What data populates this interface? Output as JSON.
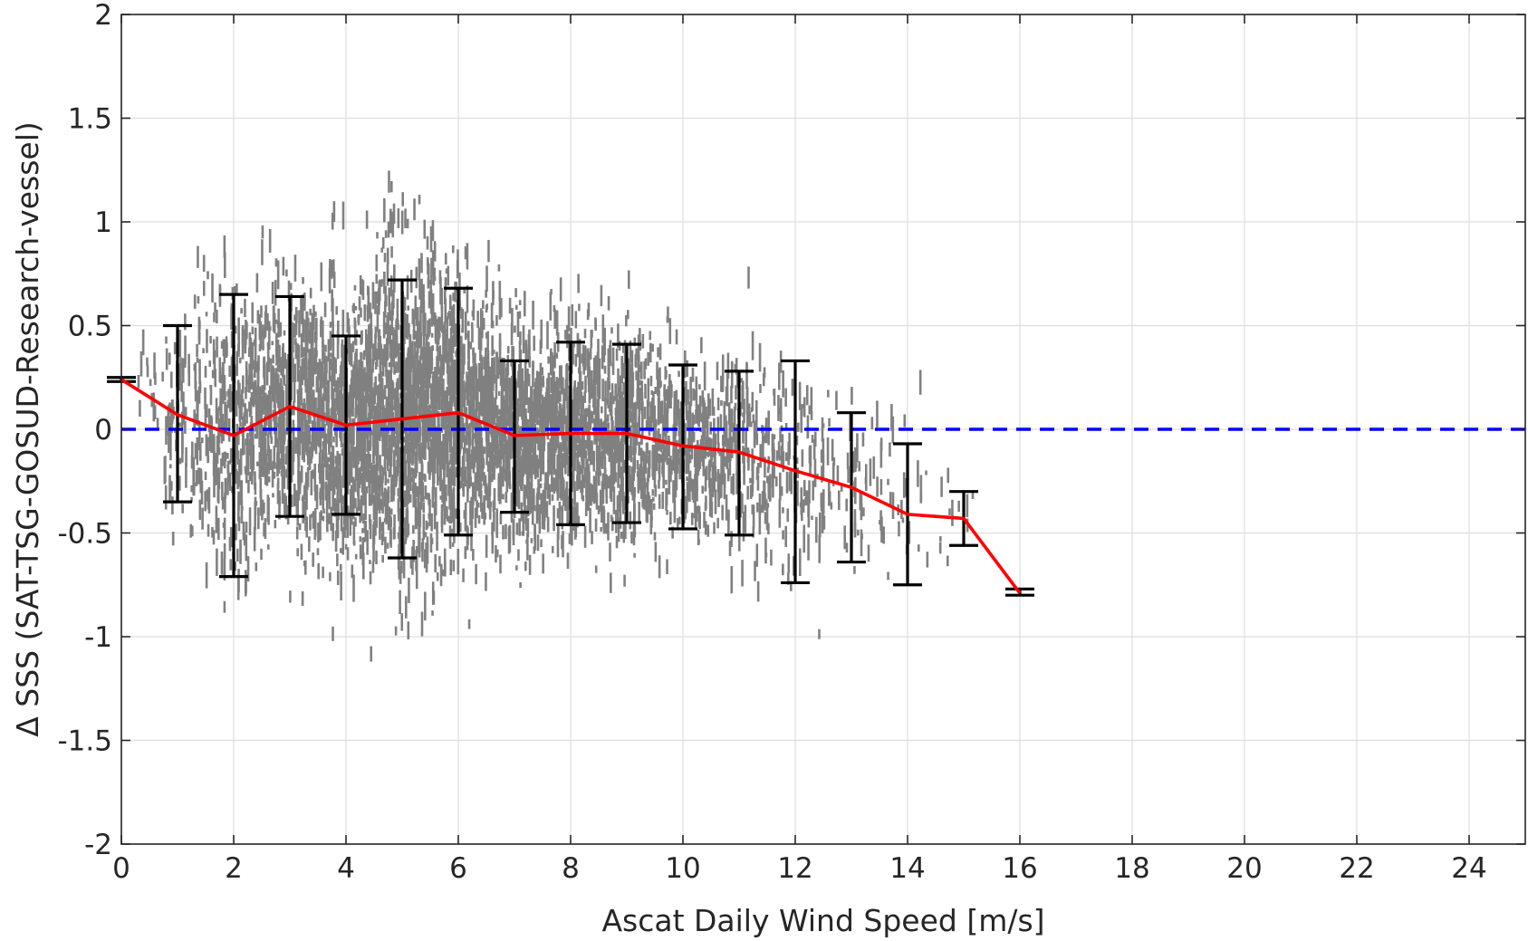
{
  "chart_data": {
    "type": "scatter",
    "xlabel": "Ascat Daily Wind Speed [m/s]",
    "ylabel": "Δ SSS (SAT-TSG-GOSUD-Research-vessel)",
    "xlim": [
      0,
      25
    ],
    "ylim": [
      -2,
      2
    ],
    "x_ticks": [
      0,
      2,
      4,
      6,
      8,
      10,
      12,
      14,
      16,
      18,
      20,
      22,
      24
    ],
    "x_tick_labels": [
      "0",
      "2",
      "4",
      "6",
      "8",
      "10",
      "12",
      "14",
      "16",
      "18",
      "20",
      "22",
      "24"
    ],
    "y_ticks": [
      -2,
      -1.5,
      -1,
      -0.5,
      0,
      0.5,
      1,
      1.5,
      2
    ],
    "y_tick_labels": [
      "-2",
      "-1.5",
      "-1",
      "-0.5",
      "0",
      "0.5",
      "1",
      "1.5",
      "2"
    ],
    "grid": true,
    "colors": {
      "scatter": "#808080",
      "mean_line": "#ff0000",
      "zero_line": "#0000ff",
      "error_bars": "#000000",
      "grid": "#dedede",
      "axes": "#262626"
    },
    "scatter_cloud": [
      {
        "x": 0.5,
        "mean": 0.25,
        "spread": 0.25,
        "count": 14
      },
      {
        "x": 1.0,
        "mean": 0.07,
        "spread": 0.45,
        "count": 60
      },
      {
        "x": 1.5,
        "mean": 0.03,
        "spread": 0.55,
        "count": 110
      },
      {
        "x": 2.0,
        "mean": -0.03,
        "spread": 0.62,
        "count": 170
      },
      {
        "x": 2.5,
        "mean": 0.03,
        "spread": 0.6,
        "count": 200
      },
      {
        "x": 3.0,
        "mean": 0.1,
        "spread": 0.6,
        "count": 240
      },
      {
        "x": 3.5,
        "mean": 0.05,
        "spread": 0.55,
        "count": 260
      },
      {
        "x": 4.0,
        "mean": 0.02,
        "spread": 0.55,
        "count": 300
      },
      {
        "x": 4.5,
        "mean": 0.04,
        "spread": 0.65,
        "count": 360
      },
      {
        "x": 5.0,
        "mean": 0.05,
        "spread": 0.7,
        "count": 380
      },
      {
        "x": 5.5,
        "mean": 0.07,
        "spread": 0.65,
        "count": 360
      },
      {
        "x": 6.0,
        "mean": 0.08,
        "spread": 0.6,
        "count": 330
      },
      {
        "x": 6.5,
        "mean": 0.03,
        "spread": 0.5,
        "count": 290
      },
      {
        "x": 7.0,
        "mean": -0.03,
        "spread": 0.45,
        "count": 270
      },
      {
        "x": 7.5,
        "mean": -0.02,
        "spread": 0.45,
        "count": 250
      },
      {
        "x": 8.0,
        "mean": -0.02,
        "spread": 0.45,
        "count": 230
      },
      {
        "x": 8.5,
        "mean": -0.02,
        "spread": 0.45,
        "count": 210
      },
      {
        "x": 9.0,
        "mean": -0.02,
        "spread": 0.43,
        "count": 190
      },
      {
        "x": 9.5,
        "mean": -0.05,
        "spread": 0.42,
        "count": 160
      },
      {
        "x": 10.0,
        "mean": -0.08,
        "spread": 0.4,
        "count": 140
      },
      {
        "x": 10.5,
        "mean": -0.1,
        "spread": 0.4,
        "count": 120
      },
      {
        "x": 11.0,
        "mean": -0.11,
        "spread": 0.4,
        "count": 100
      },
      {
        "x": 11.5,
        "mean": -0.16,
        "spread": 0.45,
        "count": 80
      },
      {
        "x": 12.0,
        "mean": -0.2,
        "spread": 0.5,
        "count": 60
      },
      {
        "x": 12.5,
        "mean": -0.24,
        "spread": 0.4,
        "count": 44
      },
      {
        "x": 13.0,
        "mean": -0.28,
        "spread": 0.35,
        "count": 32
      },
      {
        "x": 13.5,
        "mean": -0.35,
        "spread": 0.35,
        "count": 22
      },
      {
        "x": 14.0,
        "mean": -0.41,
        "spread": 0.35,
        "count": 16
      },
      {
        "x": 14.5,
        "mean": -0.43,
        "spread": 0.3,
        "count": 8
      },
      {
        "x": 15.0,
        "mean": -0.43,
        "spread": 0.15,
        "count": 5
      }
    ],
    "series": [
      {
        "x": [
          0,
          1,
          2,
          3,
          4,
          5,
          6,
          7,
          8,
          9,
          10,
          11,
          12,
          13,
          14,
          15,
          16
        ],
        "values": [
          0.24,
          0.07,
          -0.03,
          0.11,
          0.02,
          0.05,
          0.08,
          -0.03,
          -0.02,
          -0.02,
          -0.08,
          -0.11,
          -0.2,
          -0.28,
          -0.41,
          -0.43,
          -0.79
        ]
      }
    ],
    "error_bars": {
      "x": [
        0,
        1,
        2,
        3,
        4,
        5,
        6,
        7,
        8,
        9,
        10,
        11,
        12,
        13,
        14,
        15,
        16
      ],
      "lower": [
        0.23,
        -0.35,
        -0.71,
        -0.42,
        -0.41,
        -0.62,
        -0.51,
        -0.4,
        -0.46,
        -0.45,
        -0.48,
        -0.51,
        -0.74,
        -0.64,
        -0.75,
        -0.56,
        -0.8
      ],
      "upper": [
        0.25,
        0.5,
        0.65,
        0.64,
        0.45,
        0.72,
        0.68,
        0.33,
        0.42,
        0.41,
        0.31,
        0.28,
        0.33,
        0.08,
        -0.07,
        -0.3,
        -0.77
      ]
    },
    "reference_line": {
      "y": 0,
      "style": "dashed"
    }
  }
}
